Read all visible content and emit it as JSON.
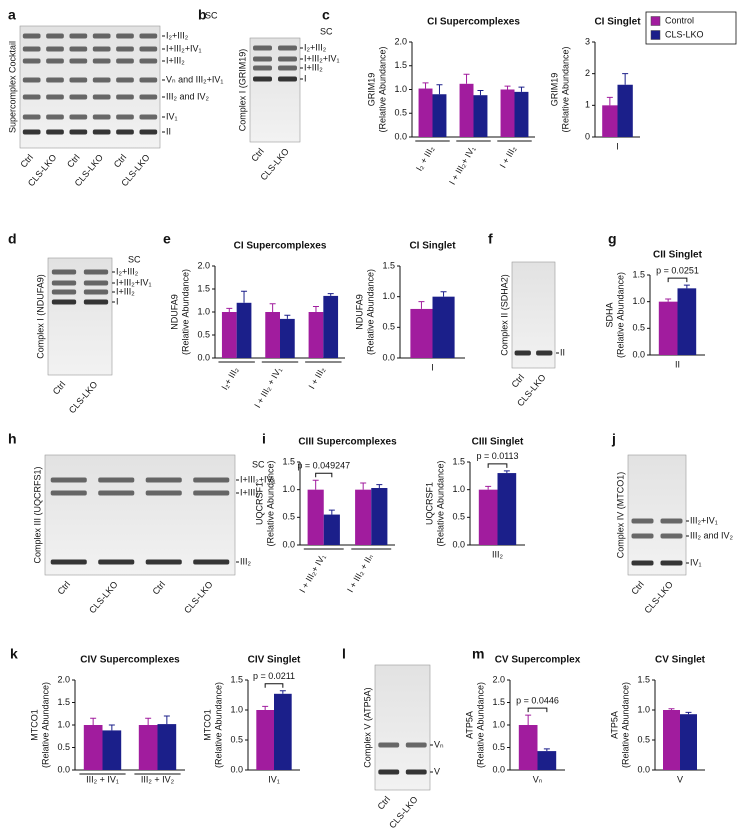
{
  "gels": [
    {
      "letter": "a",
      "ylabel": "Supercomplex Cocktail",
      "header": "SC",
      "lanes": [
        "Ctrl",
        "CLS-LKO",
        "Ctrl",
        "CLS-LKO",
        "Ctrl",
        "CLS-LKO"
      ],
      "bands": [
        {
          "label": "I₂+III₂"
        },
        {
          "label": "I+III₂+IV₁",
          "color": "#e3262b"
        },
        {
          "label": "I+III₂"
        },
        {
          "label": "Vₙ and III₂+IV₁"
        },
        {
          "label": "III₂ and IV₂"
        },
        {
          "label": "IV₁"
        },
        {
          "label": "II"
        }
      ]
    },
    {
      "letter": "b",
      "ylabel": "Complex I (GRIM19)",
      "header": "SC",
      "lanes": [
        "Ctrl",
        "CLS-LKO"
      ],
      "bands": [
        {
          "label": "I₂+III₂"
        },
        {
          "label": "I+III₂+IV₁"
        },
        {
          "label": "I+III₂"
        },
        {
          "label": "I"
        }
      ]
    },
    {
      "letter": "d",
      "ylabel": "Complex I (NDUFA9)",
      "header": "SC",
      "lanes": [
        "Ctrl",
        "CLS-LKO"
      ],
      "bands": [
        {
          "label": "I₂+III₂"
        },
        {
          "label": "I+III₂+IV₁"
        },
        {
          "label": "I+III₂"
        },
        {
          "label": "I"
        }
      ]
    },
    {
      "letter": "f",
      "ylabel": "Complex II (SDHA2)",
      "lanes": [
        "Ctrl",
        "CLS-LKO"
      ],
      "bands": [
        {
          "label": "II"
        }
      ]
    },
    {
      "letter": "h",
      "ylabel": "Complex III (UQCRFS1)",
      "header": "SC",
      "lanes": [
        "Ctrl",
        "CLS-LKO",
        "Ctrl",
        "CLS-LKO"
      ],
      "bands": [
        {
          "label": "I+III₂+IV₁"
        },
        {
          "label": "I+III₂"
        },
        {
          "label": "III₂"
        }
      ]
    },
    {
      "letter": "j",
      "ylabel": "Complex IV (MTCO1)",
      "lanes": [
        "Ctrl",
        "CLS-LKO"
      ],
      "bands": [
        {
          "label": "III₂+IV₁"
        },
        {
          "label": "III₂ and IV₂"
        },
        {
          "label": "IV₁"
        }
      ]
    },
    {
      "letter": "l",
      "ylabel": "Complex V (ATP5A)",
      "lanes": [
        "Ctrl",
        "CLS-LKO"
      ],
      "bands": [
        {
          "label": "Vₙ"
        },
        {
          "label": "V"
        }
      ]
    }
  ],
  "chart_data": [
    {
      "type": "bar",
      "letter": "c",
      "title": "CI Supercomplexes",
      "ylabel": [
        "GRIM19",
        "(Relative Abundance)"
      ],
      "categories": [
        "I₂ + III₂",
        "I + III₂+ IV₁",
        "I + III₂"
      ],
      "xlabel_rotation": 60,
      "series": [
        {
          "color": "#a11c9e",
          "values": [
            1.02,
            1.12,
            1.0
          ],
          "errors": [
            0.12,
            0.2,
            0.07
          ]
        },
        {
          "color": "#1b1f8a",
          "values": [
            0.9,
            0.88,
            0.95
          ],
          "errors": [
            0.2,
            0.1,
            0.1
          ]
        }
      ],
      "ylim": [
        0,
        2
      ],
      "yticks": [
        {
          "value": 0,
          "label": "0.0"
        },
        {
          "value": 0.5,
          "label": "0.5"
        },
        {
          "value": 1,
          "label": "1.0"
        },
        {
          "value": 1.5,
          "label": "1.5"
        },
        {
          "value": 2,
          "label": "2.0"
        }
      ]
    },
    {
      "type": "bar",
      "title": "CI Singlet",
      "ylabel": [
        "GRIM19",
        "(Relative Abundance)"
      ],
      "categories": [
        "I"
      ],
      "xlabel_rotation": 0,
      "legend": "upper right",
      "series": [
        {
          "name": "Control",
          "color": "#a11c9e",
          "values": [
            1.0
          ],
          "errors": [
            0.25
          ]
        },
        {
          "name": "CLS-LKO",
          "color": "#1b1f8a",
          "values": [
            1.65
          ],
          "errors": [
            0.35
          ]
        }
      ],
      "ylim": [
        0,
        3
      ],
      "yticks": [
        0,
        1,
        2,
        3
      ]
    },
    {
      "type": "bar",
      "letter": "e",
      "title": "CI Supercomplexes",
      "ylabel": [
        "NDUFA9",
        "(Relative Abundance)"
      ],
      "categories": [
        "I₂+ III₂",
        "I + III₂ + IV₁",
        "I + III₂"
      ],
      "xlabel_rotation": 60,
      "series": [
        {
          "color": "#a11c9e",
          "values": [
            1.0,
            1.0,
            1.0
          ],
          "errors": [
            0.08,
            0.18,
            0.12
          ]
        },
        {
          "color": "#1b1f8a",
          "values": [
            1.2,
            0.85,
            1.35
          ],
          "errors": [
            0.25,
            0.08,
            0.05
          ]
        }
      ],
      "ylim": [
        0,
        2
      ],
      "yticks": [
        {
          "value": 0,
          "label": "0.0"
        },
        {
          "value": 0.5,
          "label": "0.5"
        },
        {
          "value": 1,
          "label": "1.0"
        },
        {
          "value": 1.5,
          "label": "1.5"
        },
        {
          "value": 2,
          "label": "2.0"
        }
      ]
    },
    {
      "type": "bar",
      "title": "CI Singlet",
      "ylabel": [
        "NDUFA9",
        "(Relative Abundance)"
      ],
      "categories": [
        "I"
      ],
      "xlabel_rotation": 0,
      "series": [
        {
          "color": "#a11c9e",
          "values": [
            0.8
          ],
          "errors": [
            0.12
          ]
        },
        {
          "color": "#1b1f8a",
          "values": [
            1.0
          ],
          "errors": [
            0.08
          ]
        }
      ],
      "ylim": [
        0,
        1.5
      ],
      "yticks": [
        {
          "value": 0,
          "label": "0.0"
        },
        {
          "value": 0.5,
          "label": "0.5"
        },
        {
          "value": 1,
          "label": "1.0"
        },
        {
          "value": 1.5,
          "label": "1.5"
        }
      ]
    },
    {
      "type": "bar",
      "letter": "g",
      "title": "CII Singlet",
      "ylabel": [
        "SDHA",
        "(Relative Abundance)"
      ],
      "categories": [
        "II"
      ],
      "xlabel_rotation": 0,
      "pvalues": [
        "p = 0.0251"
      ],
      "series": [
        {
          "color": "#a11c9e",
          "values": [
            1.0
          ],
          "errors": [
            0.05
          ]
        },
        {
          "color": "#1b1f8a",
          "values": [
            1.25
          ],
          "errors": [
            0.06
          ]
        }
      ],
      "ylim": [
        0,
        1.5
      ],
      "yticks": [
        {
          "value": 0,
          "label": "0.0"
        },
        {
          "value": 0.5,
          "label": "0.5"
        },
        {
          "value": 1,
          "label": "1.0"
        },
        {
          "value": 1.5,
          "label": "1.5"
        }
      ]
    },
    {
      "type": "bar",
      "letter": "i",
      "title": "CIII Supercomplexes",
      "ylabel": [
        "UQCRSF1",
        "(Relative Abundance)"
      ],
      "categories": [
        "I + III₂+ IV₁",
        "I + III₂ + IIₙ"
      ],
      "xlabel_rotation": 60,
      "pvalues": [
        "p = 0.049247",
        null
      ],
      "series": [
        {
          "color": "#a11c9e",
          "values": [
            1.0,
            1.0
          ],
          "errors": [
            0.17,
            0.12
          ]
        },
        {
          "color": "#1b1f8a",
          "values": [
            0.55,
            1.03
          ],
          "errors": [
            0.08,
            0.06
          ]
        }
      ],
      "ylim": [
        0,
        1.5
      ],
      "yticks": [
        {
          "value": 0,
          "label": "0.0"
        },
        {
          "value": 0.5,
          "label": "0.5"
        },
        {
          "value": 1,
          "label": "1.0"
        },
        {
          "value": 1.5,
          "label": "1.5"
        }
      ]
    },
    {
      "type": "bar",
      "title": "CIII Singlet",
      "ylabel": [
        "UQCRSF1",
        "(Relative Abundance)"
      ],
      "categories": [
        "III₂"
      ],
      "xlabel_rotation": 0,
      "pvalues": [
        "p = 0.0113"
      ],
      "series": [
        {
          "color": "#a11c9e",
          "values": [
            1.0
          ],
          "errors": [
            0.06
          ]
        },
        {
          "color": "#1b1f8a",
          "values": [
            1.3
          ],
          "errors": [
            0.04
          ]
        }
      ],
      "ylim": [
        0,
        1.5
      ],
      "yticks": [
        {
          "value": 0,
          "label": "0.0"
        },
        {
          "value": 0.5,
          "label": "0.5"
        },
        {
          "value": 1,
          "label": "1.0"
        },
        {
          "value": 1.5,
          "label": "1.5"
        }
      ]
    },
    {
      "type": "bar",
      "letter": "k",
      "title": "CIV  Supercomplexes",
      "ylabel": [
        "MTCO1",
        "(Relative Abundance)"
      ],
      "categories": [
        "III₂ + IV₁",
        "III₂ + IV₂"
      ],
      "xlabel_rotation": 0,
      "series": [
        {
          "color": "#a11c9e",
          "values": [
            1.0,
            1.0
          ],
          "errors": [
            0.15,
            0.15
          ]
        },
        {
          "color": "#1b1f8a",
          "values": [
            0.88,
            1.02
          ],
          "errors": [
            0.12,
            0.18
          ]
        }
      ],
      "ylim": [
        0,
        2
      ],
      "yticks": [
        {
          "value": 0,
          "label": "0.0"
        },
        {
          "value": 0.5,
          "label": "0.5"
        },
        {
          "value": 1,
          "label": "1.0"
        },
        {
          "value": 1.5,
          "label": "1.5"
        },
        {
          "value": 2,
          "label": "2.0"
        }
      ]
    },
    {
      "type": "bar",
      "title": "CIV Singlet",
      "ylabel": [
        "MTCO1",
        "(Relative Abundance)"
      ],
      "categories": [
        "IV₁"
      ],
      "xlabel_rotation": 0,
      "pvalues": [
        "p = 0.0211"
      ],
      "series": [
        {
          "color": "#a11c9e",
          "values": [
            1.0
          ],
          "errors": [
            0.06
          ]
        },
        {
          "color": "#1b1f8a",
          "values": [
            1.27
          ],
          "errors": [
            0.05
          ]
        }
      ],
      "ylim": [
        0,
        1.5
      ],
      "yticks": [
        {
          "value": 0,
          "label": "0.0"
        },
        {
          "value": 0.5,
          "label": "0.5"
        },
        {
          "value": 1,
          "label": "1.0"
        },
        {
          "value": 1.5,
          "label": "1.5"
        }
      ]
    },
    {
      "type": "bar",
      "letter": "m",
      "title": "CV Supercomplex",
      "ylabel": [
        "ATP5A",
        "(Relative Abundance)"
      ],
      "categories": [
        "Vₙ"
      ],
      "xlabel_rotation": 0,
      "pvalues": [
        "p = 0.0446"
      ],
      "series": [
        {
          "color": "#a11c9e",
          "values": [
            1.0
          ],
          "errors": [
            0.22
          ]
        },
        {
          "color": "#1b1f8a",
          "values": [
            0.42
          ],
          "errors": [
            0.05
          ]
        }
      ],
      "ylim": [
        0,
        2
      ],
      "yticks": [
        {
          "value": 0,
          "label": "0.0"
        },
        {
          "value": 0.5,
          "label": "0.5"
        },
        {
          "value": 1,
          "label": "1.0"
        },
        {
          "value": 1.5,
          "label": "1.5"
        },
        {
          "value": 2,
          "label": "2.0"
        }
      ]
    },
    {
      "type": "bar",
      "title": "CV Singlet",
      "ylabel": [
        "ATP5A",
        "(Relative Abundance)"
      ],
      "categories": [
        "V"
      ],
      "xlabel_rotation": 0,
      "series": [
        {
          "color": "#a11c9e",
          "values": [
            1.0
          ],
          "errors": [
            0.02
          ]
        },
        {
          "color": "#1b1f8a",
          "values": [
            0.93
          ],
          "errors": [
            0.03
          ]
        }
      ],
      "ylim": [
        0,
        1.5
      ],
      "yticks": [
        {
          "value": 0,
          "label": "0.0"
        },
        {
          "value": 0.5,
          "label": "0.5"
        },
        {
          "value": 1,
          "label": "1.0"
        },
        {
          "value": 1.5,
          "label": "1.5"
        }
      ]
    }
  ]
}
